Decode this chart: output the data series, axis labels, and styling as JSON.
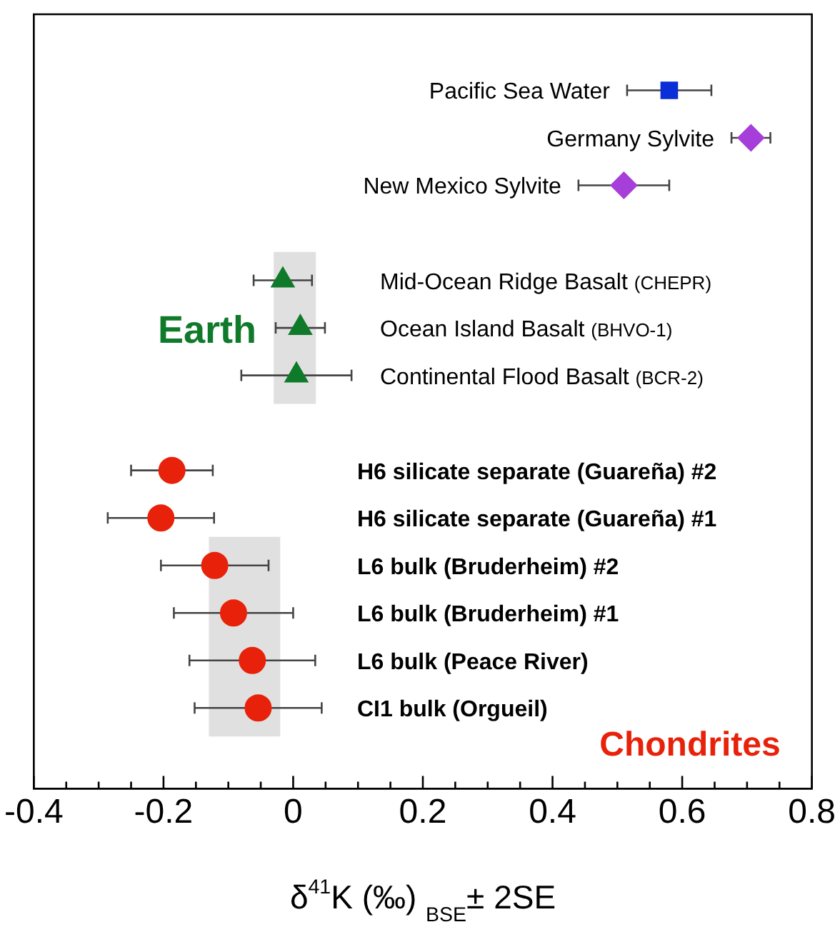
{
  "chart_data": {
    "type": "scatter",
    "orientation": "horizontal",
    "xlabel": "δ$^{41}$K (‰) $_{BSE}$± 2SE",
    "categories": [
      "Pacific Sea Water",
      "Germany Sylvite",
      "New Mexico Sylvite",
      null,
      "Mid-Ocean Ridge Basalt (CHEPR)",
      "Ocean Island Basalt (BHVO-1)",
      "Continental Flood Basalt (BCR-2)",
      null,
      "H6 silicate separate (Guareña) #2",
      "H6 silicate separate (Guareña) #1",
      "L6 bulk (Bruderheim) #2",
      "L6 bulk (Bruderheim) #1",
      "L6 bulk (Peace River)",
      "CI1 bulk (Orgueil)"
    ],
    "series": [
      {
        "color": "#0b2fd6",
        "marker": "square",
        "values": [
          0.58,
          null,
          null,
          null,
          null,
          null,
          null,
          null,
          null,
          null,
          null,
          null,
          null,
          null
        ],
        "errors": [
          0.065,
          null,
          null,
          null,
          null,
          null,
          null,
          null,
          null,
          null,
          null,
          null,
          null,
          null
        ]
      },
      {
        "color": "#a63fd9",
        "marker": "diamond",
        "values": [
          null,
          0.706,
          0.51,
          null,
          null,
          null,
          null,
          null,
          null,
          null,
          null,
          null,
          null,
          null
        ],
        "errors": [
          null,
          0.03,
          0.07,
          null,
          null,
          null,
          null,
          null,
          null,
          null,
          null,
          null,
          null,
          null
        ]
      },
      {
        "name": "Earth",
        "color": "#0f7a2a",
        "marker": "triangle",
        "values": [
          null,
          null,
          null,
          null,
          -0.016,
          0.011,
          0.005,
          null,
          null,
          null,
          null,
          null,
          null,
          null
        ],
        "errors": [
          null,
          null,
          null,
          null,
          0.045,
          0.038,
          0.085,
          null,
          null,
          null,
          null,
          null,
          null,
          null
        ]
      },
      {
        "name": "Chondrites",
        "color": "#e8220a",
        "marker": "circle",
        "values": [
          null,
          null,
          null,
          null,
          null,
          null,
          null,
          null,
          -0.187,
          -0.204,
          -0.121,
          -0.092,
          -0.063,
          -0.054
        ],
        "errors": [
          null,
          null,
          null,
          null,
          null,
          null,
          null,
          null,
          0.063,
          0.082,
          0.083,
          0.092,
          0.097,
          0.098
        ]
      }
    ],
    "bands": [
      {
        "axis": "x",
        "from": -0.03,
        "to": 0.035,
        "color": "#e0e0e0"
      },
      {
        "axis": "x",
        "from": -0.13,
        "to": -0.02,
        "color": "#e0e0e0"
      }
    ],
    "xlim": [
      -0.4,
      0.8
    ],
    "xticks": [
      -0.4,
      -0.2,
      0,
      0.2,
      0.4,
      0.6,
      0.8
    ],
    "grid": false,
    "legend": false
  }
}
